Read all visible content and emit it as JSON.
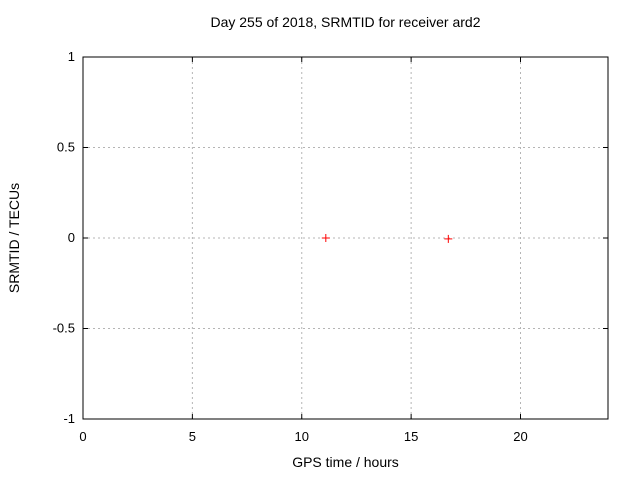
{
  "chart_data": {
    "type": "scatter",
    "title": "Day 255 of 2018, SRMTID for receiver ard2",
    "xlabel": "GPS time / hours",
    "ylabel": "SRMTID / TECUs",
    "xlim": [
      0,
      24
    ],
    "ylim": [
      -1,
      1
    ],
    "xticks": [
      0,
      5,
      10,
      15,
      20
    ],
    "yticks": [
      -1,
      -0.5,
      0,
      0.5,
      1
    ],
    "grid": true,
    "legend_position": "none",
    "series": [
      {
        "name": "SRMTID",
        "marker": "plus",
        "color": "#ff0000",
        "points": [
          [
            11.1,
            0.0
          ],
          [
            16.7,
            -0.005
          ]
        ]
      }
    ],
    "colors": {
      "background": "#ffffff",
      "axis": "#000000",
      "grid": "#b5b5b5",
      "text": "#000000",
      "marker": "#ff0000"
    }
  }
}
